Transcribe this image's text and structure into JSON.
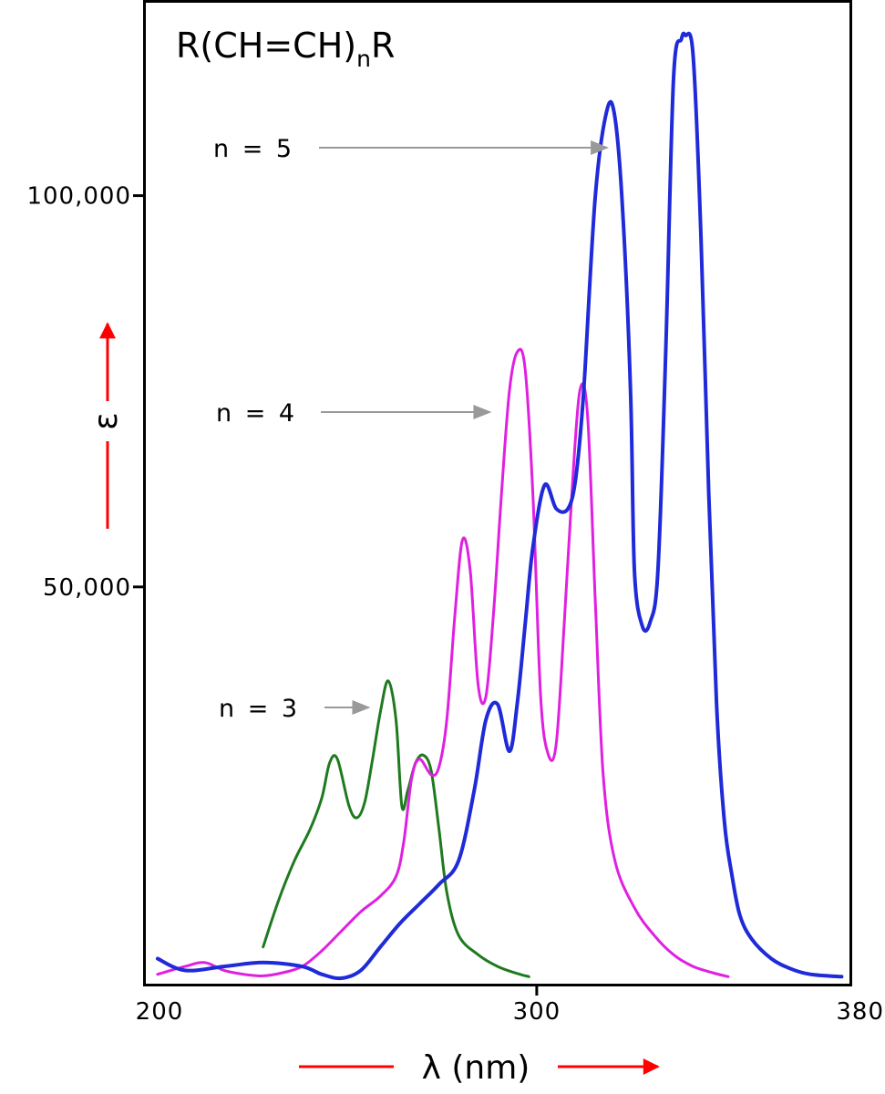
{
  "chart_data": {
    "type": "line",
    "title_parts": {
      "main": "R(CH=CH)",
      "subscript": "n",
      "suffix": "R"
    },
    "xlabel": "λ (nm)",
    "ylabel": "ε",
    "xlim": [
      200,
      380
    ],
    "ylim": [
      0,
      125000
    ],
    "x_ticks": [
      {
        "value": 200,
        "label": "200"
      },
      {
        "value": 300,
        "label": "300"
      },
      {
        "value": 380,
        "label": "380"
      }
    ],
    "y_ticks": [
      {
        "value": 50000,
        "label": "50,000"
      },
      {
        "value": 100000,
        "label": "100,000"
      }
    ],
    "grid": false,
    "legend": "none",
    "series": [
      {
        "name": "n = 3",
        "color": "#1f7a1f",
        "x": [
          230,
          234,
          238,
          242,
          245,
          247,
          249,
          252,
          254,
          256,
          258,
          260,
          262,
          264,
          265.5,
          267,
          269,
          271,
          273,
          275,
          277,
          280,
          285,
          290,
          295,
          298
        ],
        "y": [
          4000,
          10000,
          15000,
          19000,
          23000,
          27500,
          28000,
          22000,
          20500,
          22500,
          28000,
          34000,
          38000,
          33000,
          22000,
          24000,
          27500,
          28500,
          26500,
          19000,
          11000,
          5500,
          3000,
          1500,
          600,
          200
        ]
      },
      {
        "name": "n = 4",
        "color": "#e020e0",
        "x": [
          203,
          210,
          215,
          220,
          225,
          230,
          235,
          240,
          245,
          250,
          255,
          260,
          264,
          266,
          268,
          270,
          273,
          275,
          277,
          279,
          281,
          283,
          285,
          287,
          289,
          291,
          293,
          295,
          297,
          299,
          301,
          303,
          305,
          307,
          309,
          311,
          313,
          315,
          317,
          320,
          325,
          330,
          335,
          340,
          345,
          349
        ],
        "y": [
          500,
          1500,
          2000,
          1000,
          500,
          300,
          700,
          1500,
          3500,
          6000,
          8500,
          10500,
          13000,
          17500,
          25500,
          28000,
          26000,
          27000,
          33000,
          46000,
          56000,
          52000,
          37500,
          36000,
          47000,
          62000,
          75000,
          80000,
          78000,
          62000,
          36000,
          28500,
          30000,
          45000,
          62000,
          75000,
          72000,
          48000,
          26000,
          15000,
          9000,
          5500,
          3000,
          1500,
          700,
          200
        ]
      },
      {
        "name": "n = 5",
        "color": "#1f2ad8",
        "x": [
          203,
          210,
          220,
          230,
          240,
          245,
          250,
          255,
          260,
          265,
          270,
          275,
          280,
          284,
          287,
          290,
          293,
          295,
          297,
          299,
          302,
          305,
          308,
          310,
          312,
          315,
          318,
          320,
          322,
          324,
          325,
          327,
          329,
          331,
          333,
          335,
          337,
          338,
          340,
          342,
          344,
          346,
          348,
          350,
          352,
          355,
          360,
          365,
          370,
          378
        ],
        "y": [
          2500,
          1000,
          1500,
          2000,
          1500,
          500,
          0,
          1000,
          4000,
          7000,
          9500,
          12000,
          15000,
          24000,
          33000,
          35000,
          29000,
          35000,
          45000,
          55000,
          63000,
          60000,
          60000,
          64000,
          75000,
          100000,
          111000,
          110000,
          98000,
          75000,
          52000,
          45000,
          45500,
          52000,
          80000,
          115000,
          120000,
          120500,
          118000,
          95000,
          62000,
          35000,
          20000,
          13000,
          8000,
          5000,
          2500,
          1200,
          500,
          200
        ]
      }
    ],
    "annotations": [
      {
        "text": "n = 3",
        "arrow_to": {
          "x": 257,
          "y": 34000
        }
      },
      {
        "text": "n = 4",
        "arrow_to": {
          "x": 288,
          "y": 71000
        }
      },
      {
        "text": "n = 5",
        "arrow_to": {
          "x": 318,
          "y": 105000
        }
      }
    ],
    "colors": {
      "axis": "#000000",
      "arrow_gray": "#999999",
      "axis_arrows": "#ff0000"
    }
  }
}
